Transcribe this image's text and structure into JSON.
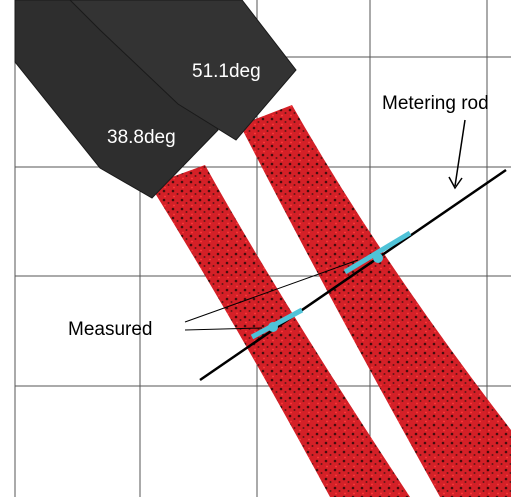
{
  "labels": {
    "nozzle_right": "51.1deg",
    "nozzle_left": "38.8deg",
    "rod": "Metering rod",
    "measured": "Measured"
  }
}
